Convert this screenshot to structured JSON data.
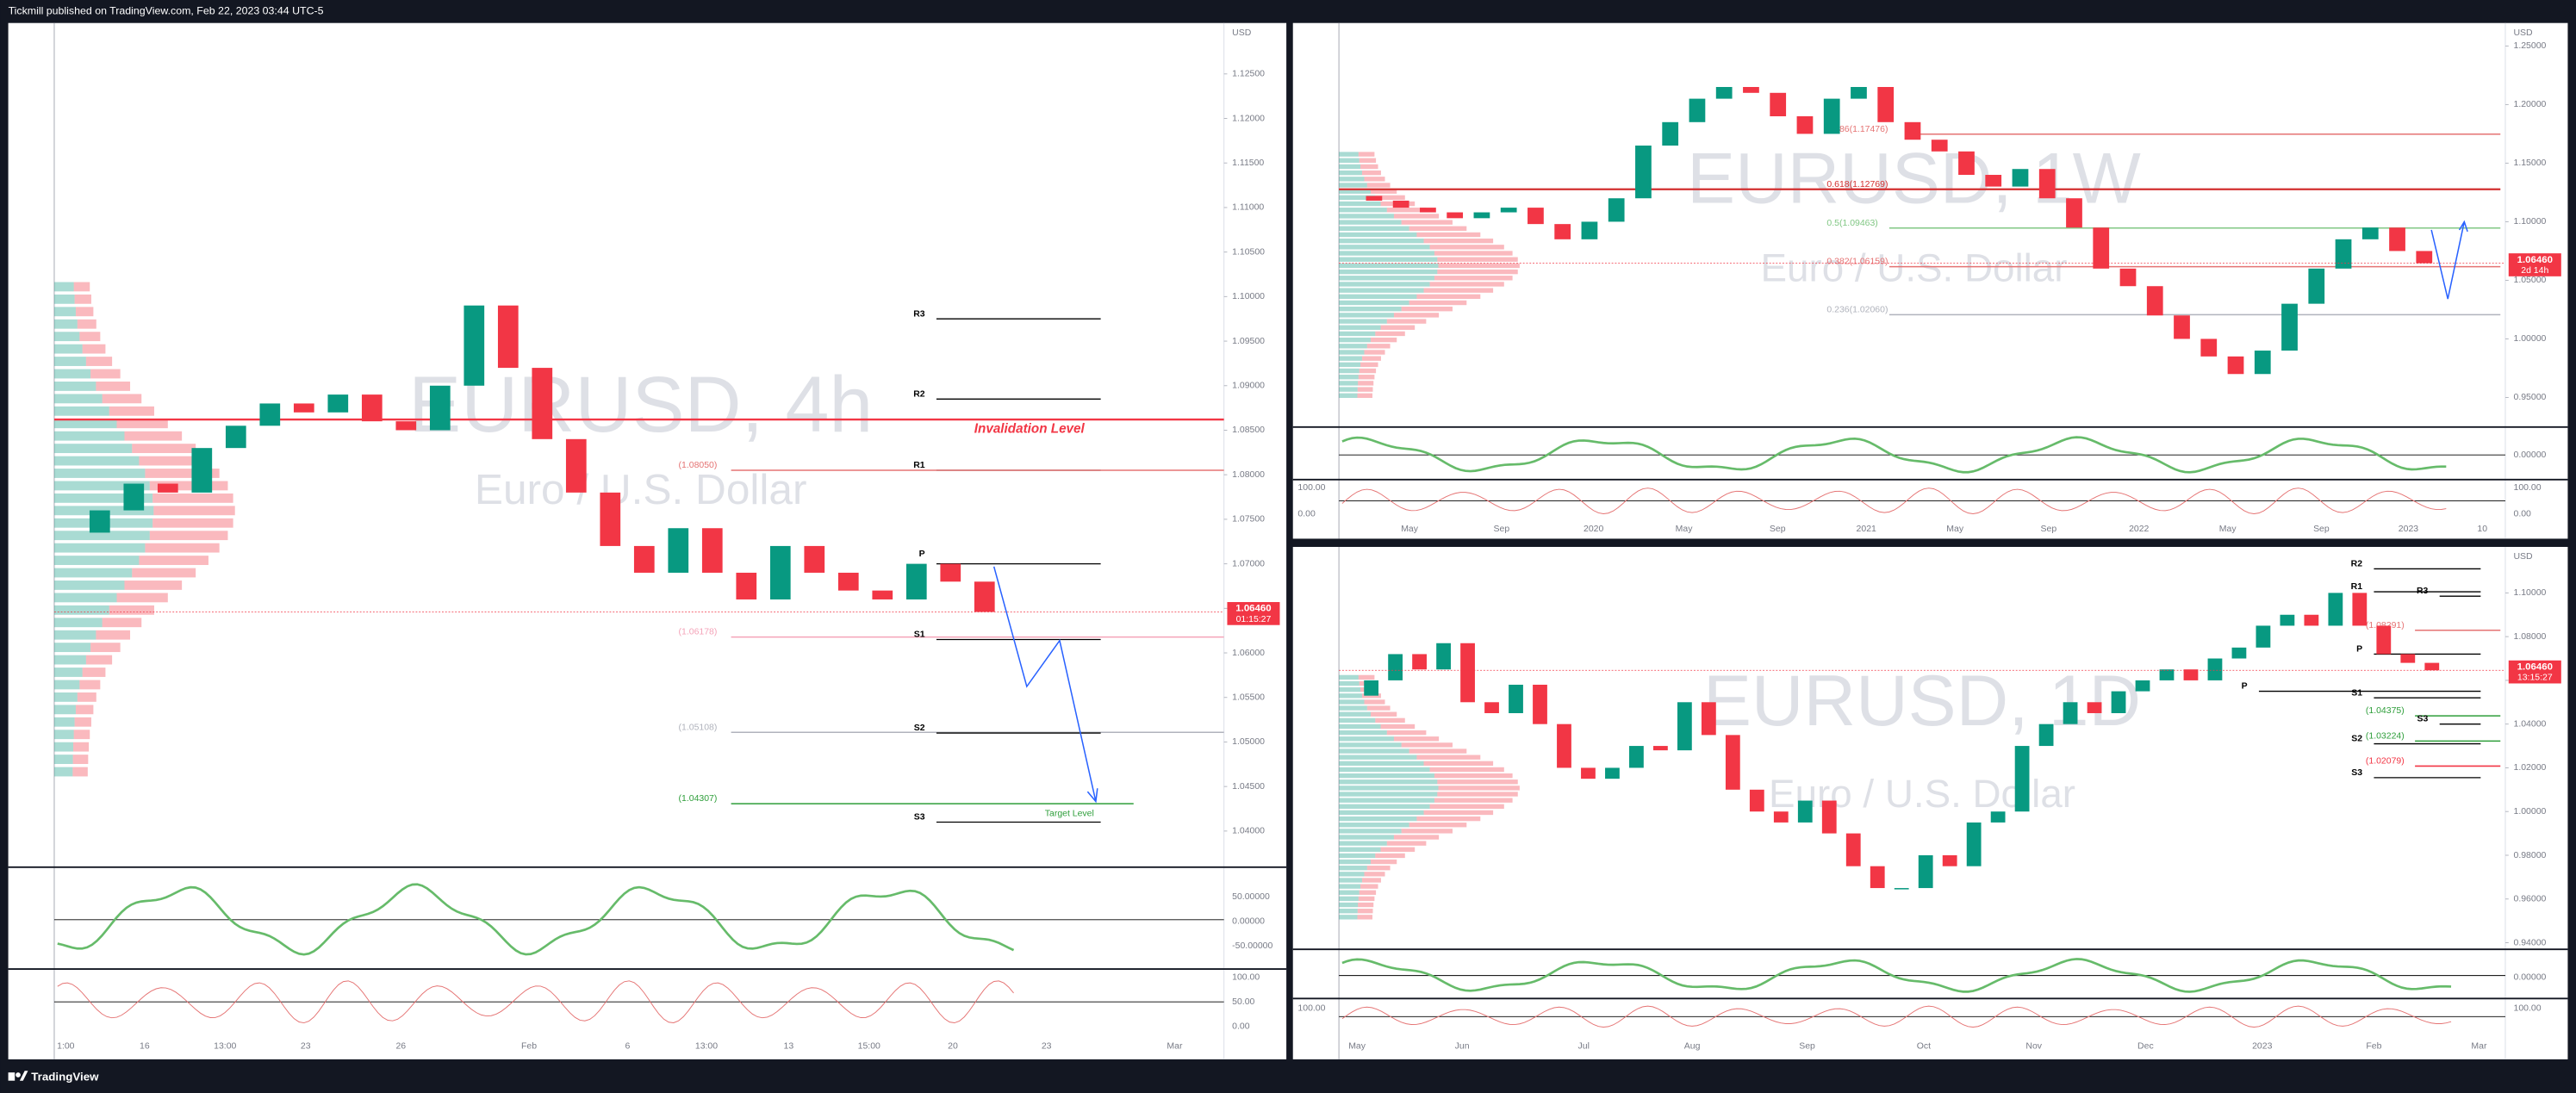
{
  "header": {
    "text": "Tickmill published on TradingView.com, Feb 22, 2023 03:44 UTC-5"
  },
  "footer": {
    "brand": "TradingView"
  },
  "candle_colors": {
    "up": "#089981",
    "down": "#f23645"
  },
  "panels": [
    {
      "title": "EURUSD, 4h",
      "subtitle": "Euro / U.S. Dollar",
      "currency": "USD",
      "last_price": "1.06460",
      "countdown": "01:15:27",
      "price_ticks": [
        {
          "value": 1.125,
          "label": "1.12500"
        },
        {
          "value": 1.12,
          "label": "1.12000"
        },
        {
          "value": 1.115,
          "label": "1.11500"
        },
        {
          "value": 1.11,
          "label": "1.11000"
        },
        {
          "value": 1.105,
          "label": "1.10500"
        },
        {
          "value": 1.1,
          "label": "1.10000"
        },
        {
          "value": 1.095,
          "label": "1.09500"
        },
        {
          "value": 1.09,
          "label": "1.09000"
        },
        {
          "value": 1.085,
          "label": "1.08500"
        },
        {
          "value": 1.08,
          "label": "1.08000"
        },
        {
          "value": 1.075,
          "label": "1.07500"
        },
        {
          "value": 1.07,
          "label": "1.07000"
        },
        {
          "value": 1.065,
          "label": "1.06500"
        },
        {
          "value": 1.06,
          "label": "1.06000"
        },
        {
          "value": 1.055,
          "label": "1.05500"
        },
        {
          "value": 1.05,
          "label": "1.05000"
        },
        {
          "value": 1.045,
          "label": "1.04500"
        },
        {
          "value": 1.04,
          "label": "1.04000"
        }
      ],
      "time_labels": [
        "1:00",
        "16",
        "13:00",
        "23",
        "26",
        "Feb",
        "6",
        "13:00",
        "13",
        "15:00",
        "20",
        "23",
        "Mar"
      ],
      "closes": [
        1.0735,
        1.076,
        1.079,
        1.078,
        1.083,
        1.0855,
        1.088,
        1.087,
        1.089,
        1.086,
        1.085,
        1.09,
        1.099,
        1.092,
        1.084,
        1.078,
        1.072,
        1.069,
        1.074,
        1.069,
        1.066,
        1.072,
        1.069,
        1.067,
        1.066,
        1.07,
        1.068,
        1.0646
      ],
      "levels": [
        {
          "label": "R3",
          "value": 1.0975,
          "color": "#000000"
        },
        {
          "label": "R2",
          "value": 1.0885,
          "color": "#000000"
        },
        {
          "label": "Invalidation Level",
          "value": 1.0862,
          "color": "#f23645"
        },
        {
          "label": "R1",
          "value": 1.0805,
          "color": "#000000"
        },
        {
          "label": "(1.08050)",
          "value": 1.0805,
          "color": "#e57373"
        },
        {
          "label": "P",
          "value": 1.07,
          "color": "#000000"
        },
        {
          "label": "(1.06178)",
          "value": 1.06178,
          "color": "#f4a3b8"
        },
        {
          "label": "S1",
          "value": 1.0615,
          "color": "#000000"
        },
        {
          "label": "(1.05108)",
          "value": 1.05108,
          "color": "#b0b3bc"
        },
        {
          "label": "S2",
          "value": 1.051,
          "color": "#000000"
        },
        {
          "label": "(1.04307)",
          "value": 1.04307,
          "color": "#2e9e3a"
        },
        {
          "label": "Target Level",
          "value": 1.04307,
          "color": "#2e9e3a"
        },
        {
          "label": "S3",
          "value": 1.041,
          "color": "#000000"
        }
      ],
      "osc_labels": [
        "50.00000",
        "0.00000",
        "-50.00000"
      ],
      "stoch_labels": [
        "100.00",
        "50.00",
        "0.00"
      ],
      "left_labels": []
    },
    {
      "title": "EURUSD, 1W",
      "subtitle": "Euro / U.S. Dollar",
      "currency": "USD",
      "last_price": "1.06460",
      "countdown": "2d 14h",
      "price_ticks": [
        {
          "value": 1.25,
          "label": "1.25000"
        },
        {
          "value": 1.2,
          "label": "1.20000"
        },
        {
          "value": 1.15,
          "label": "1.15000"
        },
        {
          "value": 1.1,
          "label": "1.10000"
        },
        {
          "value": 1.05,
          "label": "1.05000"
        },
        {
          "value": 1.0,
          "label": "1.00000"
        },
        {
          "value": 0.95,
          "label": "0.95000"
        }
      ],
      "time_labels": [
        "May",
        "Sep",
        "2020",
        "May",
        "Sep",
        "2021",
        "May",
        "Sep",
        "2022",
        "May",
        "Sep",
        "2023",
        "10"
      ],
      "closes": [
        1.122,
        1.118,
        1.112,
        1.108,
        1.103,
        1.108,
        1.112,
        1.098,
        1.085,
        1.1,
        1.12,
        1.165,
        1.185,
        1.205,
        1.215,
        1.21,
        1.19,
        1.175,
        1.205,
        1.215,
        1.185,
        1.17,
        1.16,
        1.14,
        1.13,
        1.145,
        1.12,
        1.095,
        1.06,
        1.045,
        1.02,
        1.0,
        0.985,
        0.97,
        0.99,
        1.03,
        1.06,
        1.085,
        1.095,
        1.075,
        1.0646
      ],
      "levels": [
        {
          "label": "0.786(1.17476)",
          "value": 1.17476,
          "color": "#e57373"
        },
        {
          "label": "0.618(1.12769)",
          "value": 1.12769,
          "color": "#d32f2f"
        },
        {
          "label": "0.5(1.09463)",
          "value": 1.09463,
          "color": "#81c784"
        },
        {
          "label": "0.382(1.06159)",
          "value": 1.06159,
          "color": "#e57373"
        },
        {
          "label": "0.236(1.02060)",
          "value": 1.0206,
          "color": "#b0b3bc"
        }
      ],
      "osc_labels": [
        "0.00000"
      ],
      "stoch_labels": [
        "100.00",
        "0.00"
      ],
      "left_labels": [
        "100.00",
        "0.00"
      ]
    },
    {
      "title": "EURUSD, 1D",
      "subtitle": "Euro / U.S. Dollar",
      "currency": "USD",
      "last_price": "1.06460",
      "countdown": "13:15:27",
      "price_ticks": [
        {
          "value": 1.1,
          "label": "1.10000"
        },
        {
          "value": 1.08,
          "label": "1.08000"
        },
        {
          "value": 1.06,
          "label": "1.06000"
        },
        {
          "value": 1.04,
          "label": "1.04000"
        },
        {
          "value": 1.02,
          "label": "1.02000"
        },
        {
          "value": 1.0,
          "label": "1.00000"
        },
        {
          "value": 0.98,
          "label": "0.98000"
        },
        {
          "value": 0.96,
          "label": "0.96000"
        },
        {
          "value": 0.94,
          "label": "0.94000"
        }
      ],
      "time_labels": [
        "May",
        "Jun",
        "Jul",
        "Aug",
        "Sep",
        "Oct",
        "Nov",
        "Dec",
        "2023",
        "Feb",
        "Mar"
      ],
      "closes": [
        1.053,
        1.06,
        1.072,
        1.065,
        1.077,
        1.05,
        1.045,
        1.058,
        1.04,
        1.02,
        1.015,
        1.02,
        1.03,
        1.028,
        1.05,
        1.035,
        1.01,
        1.0,
        0.995,
        1.005,
        0.99,
        0.975,
        0.965,
        0.965,
        0.98,
        0.975,
        0.995,
        1.0,
        1.03,
        1.04,
        1.05,
        1.045,
        1.055,
        1.06,
        1.065,
        1.06,
        1.07,
        1.075,
        1.085,
        1.09,
        1.085,
        1.1,
        1.085,
        1.072,
        1.068,
        1.0646
      ],
      "levels": [
        {
          "label": "R2",
          "value": 1.111,
          "color": "#000000"
        },
        {
          "label": "R1",
          "value": 1.1005,
          "color": "#000000"
        },
        {
          "label": "R3",
          "value": 1.0985,
          "color": "#000000"
        },
        {
          "label": "(1.08291)",
          "value": 1.08291,
          "color": "#e57373"
        },
        {
          "label": "P",
          "value": 1.072,
          "color": "#000000"
        },
        {
          "label": "P",
          "value": 1.055,
          "color": "#000000"
        },
        {
          "label": "S1",
          "value": 1.052,
          "color": "#000000"
        },
        {
          "label": "(1.04375)",
          "value": 1.04375,
          "color": "#2e9e3a"
        },
        {
          "label": "S3",
          "value": 1.04,
          "color": "#000000"
        },
        {
          "label": "(1.03224)",
          "value": 1.03224,
          "color": "#2e9e3a"
        },
        {
          "label": "S2",
          "value": 1.031,
          "color": "#000000"
        },
        {
          "label": "(1.02079)",
          "value": 1.02079,
          "color": "#f23645"
        },
        {
          "label": "S3",
          "value": 1.0155,
          "color": "#000000"
        }
      ],
      "osc_labels": [
        "0.00000"
      ],
      "stoch_labels": [
        "100.00"
      ],
      "left_labels": [
        "100.00"
      ]
    }
  ]
}
